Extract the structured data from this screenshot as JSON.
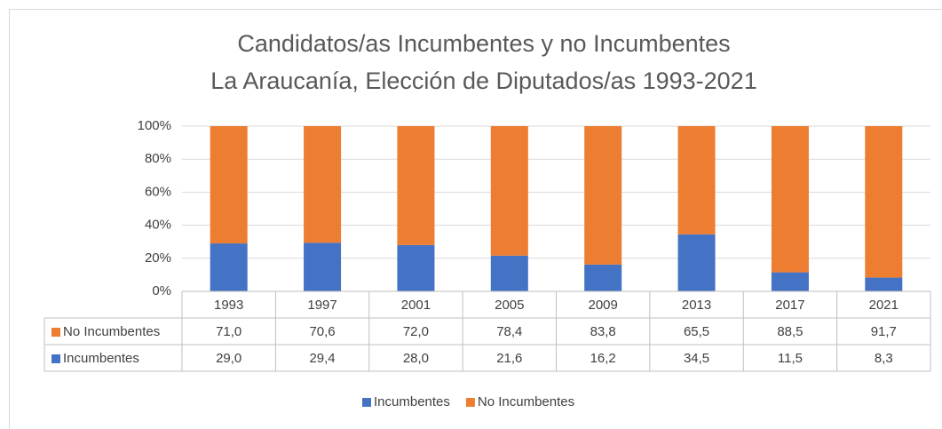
{
  "chart_data": {
    "type": "stacked_bar",
    "title": [
      "Candidatos/as Incumbentes y no Incumbentes",
      "La Araucanía, Elección de Diputados/as 1993-2021"
    ],
    "categories": [
      "1993",
      "1997",
      "2001",
      "2005",
      "2009",
      "2013",
      "2017",
      "2021"
    ],
    "series": [
      {
        "name": "Incumbentes",
        "color": "#4472c4",
        "values": [
          29.0,
          29.4,
          28.0,
          21.6,
          16.2,
          34.5,
          11.5,
          8.3
        ],
        "value_labels": [
          "29,0",
          "29,4",
          "28,0",
          "21,6",
          "16,2",
          "34,5",
          "11,5",
          "8,3"
        ]
      },
      {
        "name": "No Incumbentes",
        "color": "#ed7d31",
        "values": [
          71.0,
          70.6,
          72.0,
          78.4,
          83.8,
          65.5,
          88.5,
          91.7
        ],
        "value_labels": [
          "71,0",
          "70,6",
          "72,0",
          "78,4",
          "83,8",
          "65,5",
          "88,5",
          "91,7"
        ]
      }
    ],
    "ylim": [
      0,
      100
    ],
    "yticks": [
      {
        "value": 0,
        "label": "0%"
      },
      {
        "value": 20,
        "label": "20%"
      },
      {
        "value": 40,
        "label": "40%"
      },
      {
        "value": 60,
        "label": "60%"
      },
      {
        "value": 80,
        "label": "80%"
      },
      {
        "value": 100,
        "label": "100%"
      }
    ],
    "grid": true,
    "legend": "bottom",
    "data_table": true
  }
}
